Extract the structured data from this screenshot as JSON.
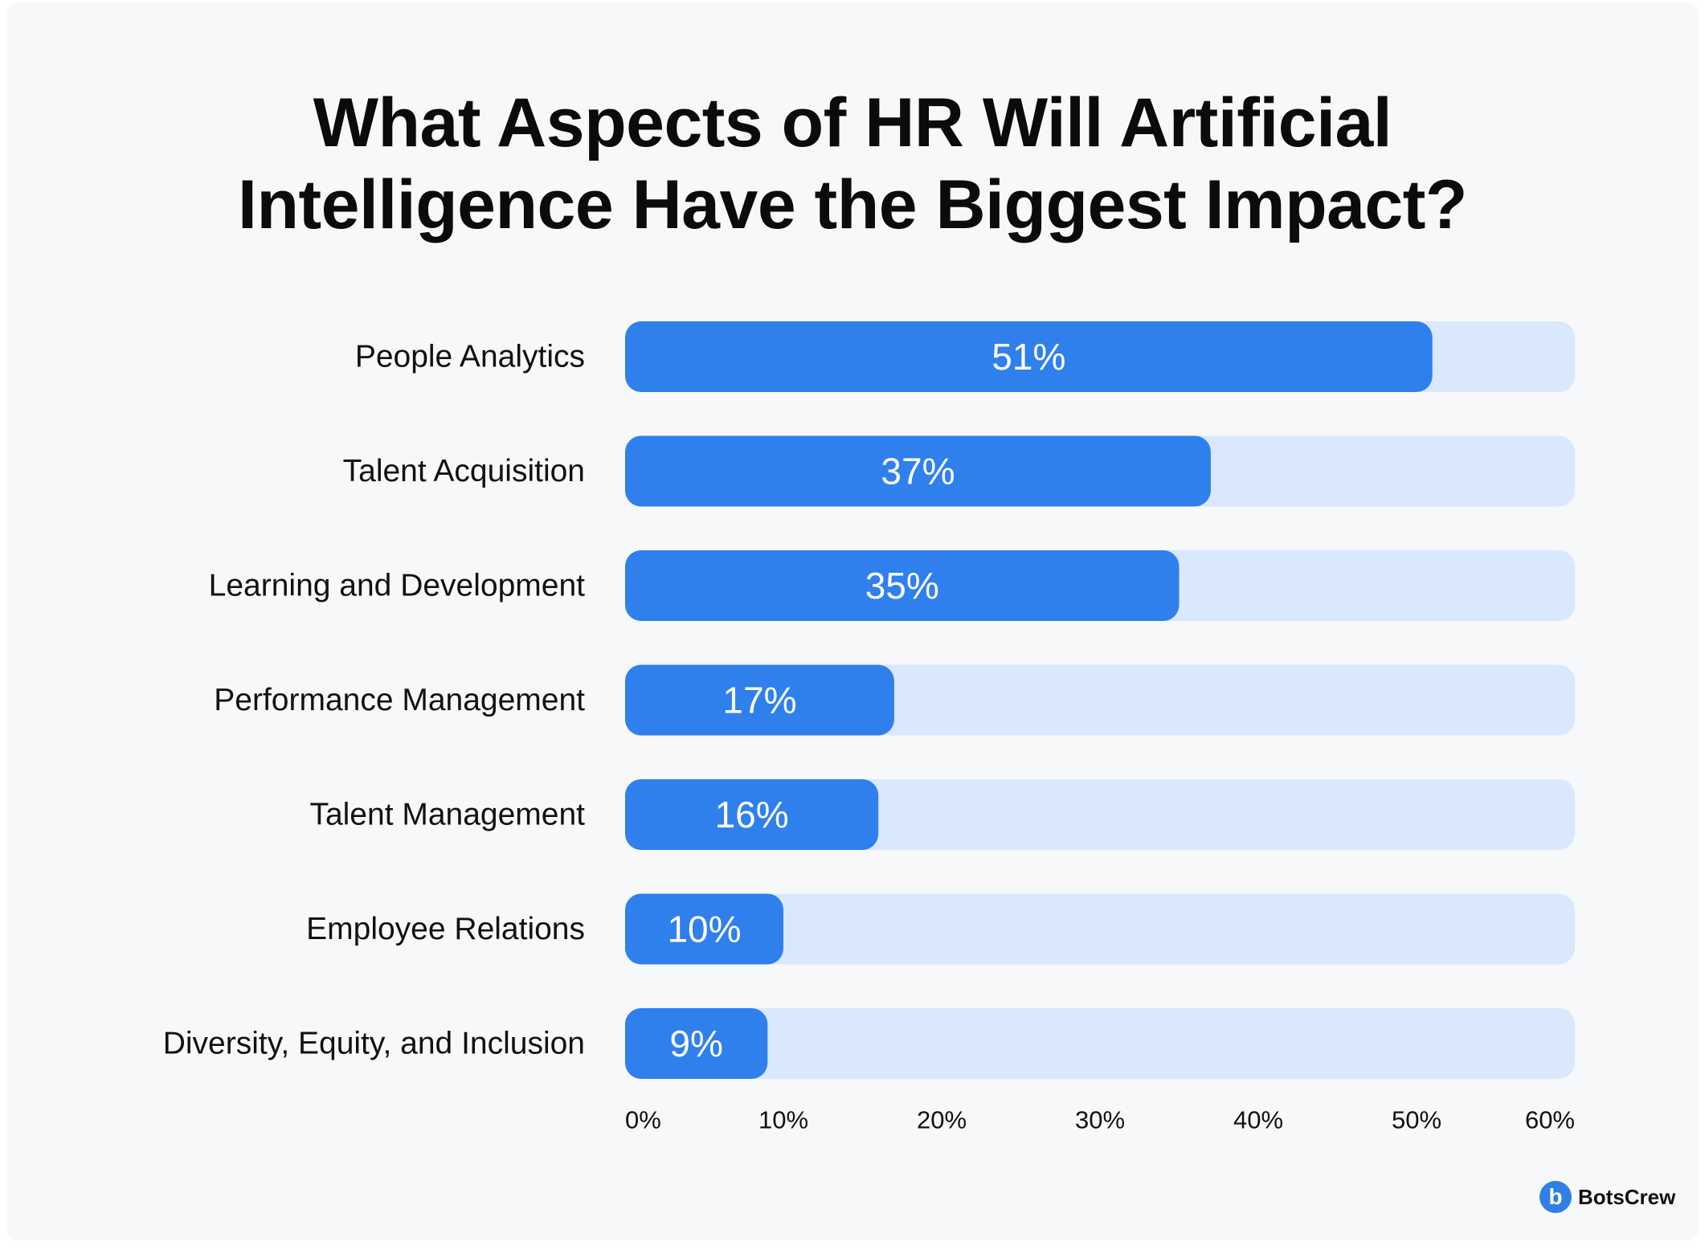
{
  "title_lines": [
    "What Aspects of HR Will Artificial",
    "Intelligence Have the Biggest Impact?"
  ],
  "colors": {
    "bar": "#2f80ed",
    "track": "#d9e8fd",
    "background": "#f7f8fa"
  },
  "logo": {
    "badge": "b",
    "text": "BotsCrew"
  },
  "chart_data": {
    "type": "bar",
    "orientation": "horizontal",
    "title": "What Aspects of HR Will Artificial Intelligence Have the Biggest Impact?",
    "categories": [
      "People Analytics",
      "Talent Acquisition",
      "Learning and Development",
      "Performance Management",
      "Talent Management",
      "Employee Relations",
      "Diversity, Equity, and Inclusion"
    ],
    "values": [
      51,
      37,
      35,
      17,
      16,
      10,
      9
    ],
    "value_labels": [
      "51%",
      "37%",
      "35%",
      "17%",
      "16%",
      "10%",
      "9%"
    ],
    "xlim": [
      0,
      60
    ],
    "x_ticks": [
      "0%",
      "10%",
      "20%",
      "30%",
      "40%",
      "50%",
      "60%"
    ],
    "xlabel": "",
    "ylabel": "",
    "grid": false,
    "legend": "none"
  }
}
